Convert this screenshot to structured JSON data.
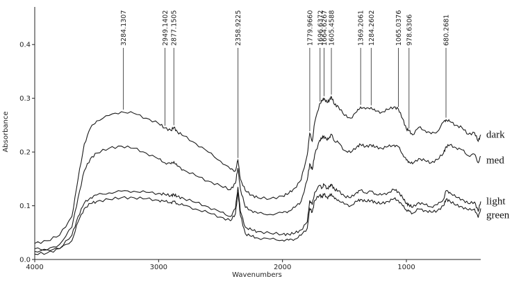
{
  "chart_data": {
    "type": "line",
    "title": "",
    "xlabel": "Wavenumbers",
    "ylabel": "Absorbance",
    "xlim": [
      4000,
      400
    ],
    "ylim": [
      0,
      0.47
    ],
    "x_reversed": true,
    "xticks": [
      4000,
      3000,
      2000,
      1000
    ],
    "xtick_labels": [
      "4000",
      "3000",
      "2000",
      "1000"
    ],
    "yticks": [
      0.0,
      0.1,
      0.2,
      0.3,
      0.4
    ],
    "ytick_labels": [
      "0.0",
      "0.1",
      "0.2",
      "0.3",
      "0.4"
    ],
    "grid": false,
    "legend": "inline-right",
    "x": [
      4000,
      3900,
      3800,
      3700,
      3650,
      3600,
      3550,
      3500,
      3400,
      3300,
      3200,
      3100,
      3000,
      2950,
      2900,
      2877,
      2850,
      2800,
      2700,
      2600,
      2500,
      2420,
      2380,
      2360,
      2340,
      2300,
      2250,
      2200,
      2100,
      2000,
      1950,
      1900,
      1850,
      1800,
      1780,
      1760,
      1740,
      1700,
      1680,
      1665,
      1640,
      1620,
      1605,
      1580,
      1550,
      1500,
      1450,
      1400,
      1370,
      1330,
      1285,
      1250,
      1200,
      1150,
      1100,
      1065,
      1030,
      1000,
      980,
      950,
      900,
      850,
      800,
      750,
      700,
      680,
      650,
      600,
      550,
      500,
      450,
      420,
      400
    ],
    "series": [
      {
        "name": "dark",
        "values": [
          0.03,
          0.035,
          0.045,
          0.08,
          0.15,
          0.215,
          0.245,
          0.258,
          0.268,
          0.275,
          0.272,
          0.263,
          0.253,
          0.245,
          0.24,
          0.246,
          0.238,
          0.23,
          0.216,
          0.2,
          0.183,
          0.168,
          0.165,
          0.185,
          0.15,
          0.128,
          0.12,
          0.115,
          0.113,
          0.118,
          0.123,
          0.133,
          0.148,
          0.195,
          0.235,
          0.22,
          0.255,
          0.29,
          0.295,
          0.3,
          0.292,
          0.297,
          0.303,
          0.288,
          0.285,
          0.268,
          0.263,
          0.275,
          0.284,
          0.28,
          0.283,
          0.276,
          0.274,
          0.279,
          0.284,
          0.28,
          0.262,
          0.243,
          0.24,
          0.232,
          0.246,
          0.24,
          0.234,
          0.238,
          0.256,
          0.26,
          0.257,
          0.25,
          0.245,
          0.233,
          0.236,
          0.22,
          0.232
        ]
      },
      {
        "name": "med",
        "values": [
          0.015,
          0.018,
          0.028,
          0.06,
          0.115,
          0.165,
          0.188,
          0.198,
          0.207,
          0.211,
          0.207,
          0.198,
          0.187,
          0.18,
          0.178,
          0.182,
          0.174,
          0.167,
          0.156,
          0.146,
          0.137,
          0.13,
          0.142,
          0.17,
          0.132,
          0.097,
          0.091,
          0.086,
          0.084,
          0.087,
          0.09,
          0.097,
          0.108,
          0.148,
          0.178,
          0.167,
          0.195,
          0.222,
          0.226,
          0.23,
          0.222,
          0.228,
          0.233,
          0.22,
          0.218,
          0.203,
          0.199,
          0.21,
          0.214,
          0.21,
          0.213,
          0.209,
          0.207,
          0.21,
          0.213,
          0.21,
          0.196,
          0.185,
          0.182,
          0.178,
          0.188,
          0.184,
          0.18,
          0.186,
          0.198,
          0.21,
          0.213,
          0.208,
          0.204,
          0.193,
          0.196,
          0.18,
          0.192
        ]
      },
      {
        "name": "light",
        "values": [
          0.01,
          0.012,
          0.02,
          0.045,
          0.08,
          0.105,
          0.115,
          0.12,
          0.124,
          0.127,
          0.127,
          0.125,
          0.123,
          0.121,
          0.119,
          0.121,
          0.117,
          0.114,
          0.106,
          0.098,
          0.088,
          0.08,
          0.095,
          0.135,
          0.09,
          0.06,
          0.055,
          0.052,
          0.049,
          0.047,
          0.047,
          0.049,
          0.055,
          0.07,
          0.11,
          0.102,
          0.125,
          0.138,
          0.133,
          0.14,
          0.132,
          0.135,
          0.14,
          0.13,
          0.128,
          0.118,
          0.115,
          0.125,
          0.129,
          0.124,
          0.127,
          0.122,
          0.12,
          0.124,
          0.13,
          0.126,
          0.115,
          0.104,
          0.102,
          0.097,
          0.106,
          0.102,
          0.098,
          0.102,
          0.112,
          0.128,
          0.125,
          0.116,
          0.112,
          0.104,
          0.107,
          0.09,
          0.108
        ]
      },
      {
        "name": "green",
        "values": [
          0.02,
          0.018,
          0.02,
          0.035,
          0.07,
          0.095,
          0.104,
          0.108,
          0.112,
          0.115,
          0.115,
          0.113,
          0.11,
          0.108,
          0.106,
          0.108,
          0.104,
          0.101,
          0.094,
          0.087,
          0.079,
          0.072,
          0.085,
          0.125,
          0.082,
          0.048,
          0.043,
          0.04,
          0.038,
          0.036,
          0.036,
          0.038,
          0.045,
          0.058,
          0.095,
          0.088,
          0.11,
          0.12,
          0.116,
          0.122,
          0.115,
          0.118,
          0.122,
          0.113,
          0.111,
          0.103,
          0.1,
          0.108,
          0.112,
          0.108,
          0.11,
          0.106,
          0.104,
          0.108,
          0.113,
          0.11,
          0.1,
          0.092,
          0.09,
          0.086,
          0.094,
          0.091,
          0.088,
          0.091,
          0.1,
          0.112,
          0.109,
          0.101,
          0.098,
          0.092,
          0.094,
          0.078,
          0.095
        ]
      }
    ],
    "annotations": [
      {
        "label": "3284.1307",
        "x": 3284.1307,
        "y": 0.275
      },
      {
        "label": "2949.1402",
        "x": 2949.1402,
        "y": 0.245
      },
      {
        "label": "2877.1505",
        "x": 2877.1505,
        "y": 0.246
      },
      {
        "label": "2358.9225",
        "x": 2358.9225,
        "y": 0.185
      },
      {
        "label": "1779.9660",
        "x": 1779.966,
        "y": 0.235
      },
      {
        "label": "1696.6372",
        "x": 1696.6372,
        "y": 0.29
      },
      {
        "label": "1664.6267",
        "x": 1664.6267,
        "y": 0.3
      },
      {
        "label": "1605.4588",
        "x": 1605.4588,
        "y": 0.303
      },
      {
        "label": "1369.2061",
        "x": 1369.2061,
        "y": 0.284
      },
      {
        "label": "1284.2602",
        "x": 1284.2602,
        "y": 0.283
      },
      {
        "label": "1065.0376",
        "x": 1065.0376,
        "y": 0.28
      },
      {
        "label": "978.6306",
        "x": 978.6306,
        "y": 0.24
      },
      {
        "label": "680.2681",
        "x": 680.2681,
        "y": 0.26
      }
    ]
  }
}
